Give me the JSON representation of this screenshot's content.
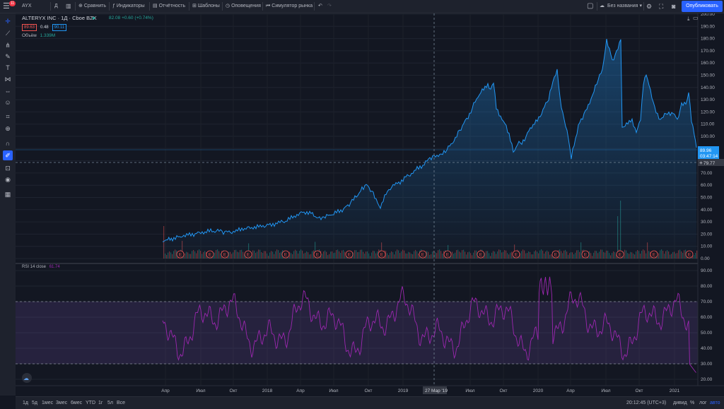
{
  "toolbar": {
    "notif_count": "11",
    "symbol": "AYX",
    "compare": "Сравнить",
    "indicators": "Индикаторы",
    "reports": "Отчётность",
    "templates": "Шаблоны",
    "alerts": "Оповещения",
    "replay": "Симулятор рынка",
    "layout_name": "Без названия",
    "publish": "Опубликовать"
  },
  "legend": {
    "title": "ALTERYX INC · 1Д · Cboe BZX",
    "sell": "89.63",
    "spread": "0.48",
    "buy": "90.11",
    "quote": "82.08 +0.60 (+0.74%)",
    "volume_label": "Объём",
    "volume_value": "1.339M",
    "rsi_label": "RSI 14 close",
    "rsi_value": "61.74"
  },
  "price_axis": {
    "ticks": [
      "200.00",
      "190.00",
      "180.00",
      "170.00",
      "160.00",
      "150.00",
      "140.00",
      "130.00",
      "120.00",
      "110.00",
      "100.00",
      "90.00",
      "80.00",
      "70.00",
      "60.00",
      "50.00",
      "40.00",
      "30.00",
      "20.00",
      "10.00",
      "0.00"
    ],
    "last_price": "89.96",
    "countdown": "03:47:14",
    "crosshair_price": "79.77"
  },
  "rsi_axis": {
    "ticks": [
      "90.00",
      "80.00",
      "70.00",
      "60.00",
      "50.00",
      "40.00",
      "30.00",
      "20.00"
    ]
  },
  "time_axis": {
    "labels": [
      "Апр",
      "Июл",
      "Окт",
      "2018",
      "Апр",
      "Июл",
      "Окт",
      "2019",
      "Июл",
      "Окт",
      "2020",
      "Апр",
      "Июл",
      "Окт",
      "2021"
    ],
    "crosshair_date": "27 Мар '19"
  },
  "earnings_marker": "E",
  "bottom": {
    "ranges": [
      "1д",
      "5д",
      "1мес",
      "3мес",
      "6мес",
      "YTD",
      "1г",
      "5л",
      "Все"
    ],
    "clock": "20:12:45 (UTC+3)",
    "adj": "дивид",
    "percent": "%",
    "log": "лог",
    "auto": "авто"
  },
  "colors": {
    "price_line": "#2196f3",
    "rsi_line": "#9c27b0",
    "accent": "#2962ff",
    "sell": "#ef5350",
    "buy": "#2196f3"
  }
}
